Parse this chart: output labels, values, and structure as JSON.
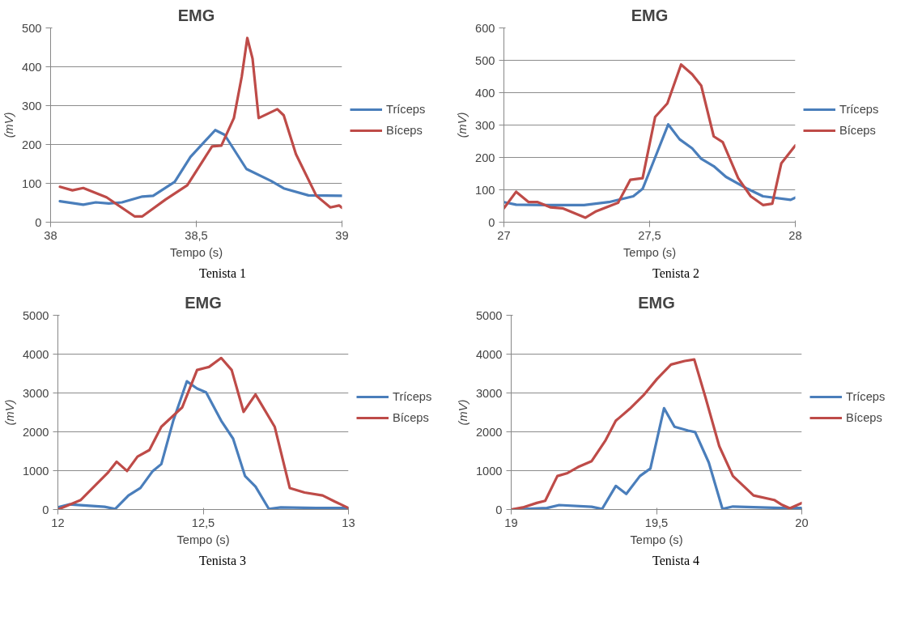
{
  "chart_data": [
    {
      "type": "line",
      "title": "EMG",
      "xlabel": "Tempo (s)",
      "ylabel": "(mV)",
      "annotations": [
        "Tenista 1"
      ],
      "xlim": [
        38,
        39
      ],
      "xticks": [
        38,
        {
          "value": 38.5,
          "label": "38,5"
        },
        39
      ],
      "ylim": [
        0,
        500
      ],
      "yticks": [
        0,
        100,
        200,
        300,
        400,
        500
      ],
      "grid": "y",
      "legend": "right",
      "series": [
        {
          "name": "Tríceps",
          "color": "#4a7ebb",
          "x": [
            38.032,
            38.112,
            38.155,
            38.2,
            38.245,
            38.315,
            38.352,
            38.426,
            38.48,
            38.565,
            38.597,
            38.672,
            38.757,
            38.8,
            38.885,
            39.0
          ],
          "values": [
            54,
            45,
            51,
            48,
            51,
            66,
            68,
            104,
            168,
            237,
            225,
            137,
            106,
            87,
            69,
            68
          ]
        },
        {
          "name": "Bíceps",
          "color": "#be4b48",
          "x": [
            38.032,
            38.075,
            38.112,
            38.192,
            38.288,
            38.315,
            38.394,
            38.469,
            38.554,
            38.586,
            38.629,
            38.656,
            38.675,
            38.693,
            38.714,
            38.778,
            38.8,
            38.842,
            38.912,
            38.96,
            38.99,
            39.0
          ],
          "values": [
            91,
            82,
            88,
            64,
            15,
            15,
            58,
            95,
            195,
            197,
            268,
            375,
            474,
            421,
            268,
            291,
            275,
            175,
            68,
            38,
            43,
            37
          ]
        }
      ]
    },
    {
      "type": "line",
      "title": "EMG",
      "xlabel": "Tempo (s)",
      "ylabel": "(mV)",
      "annotations": [
        "Tenista 2"
      ],
      "xlim": [
        27,
        28
      ],
      "xticks": [
        27,
        {
          "value": 27.5,
          "label": "27,5"
        },
        28
      ],
      "ylim": [
        0,
        600
      ],
      "yticks": [
        0,
        100,
        200,
        300,
        400,
        500,
        600
      ],
      "grid": "y",
      "legend": "right",
      "series": [
        {
          "name": "Tríceps",
          "color": "#4a7ebb",
          "x": [
            27.0,
            27.042,
            27.148,
            27.275,
            27.36,
            27.444,
            27.476,
            27.519,
            27.564,
            27.603,
            27.646,
            27.677,
            27.72,
            27.762,
            27.836,
            27.889,
            27.984,
            28.0
          ],
          "values": [
            62,
            54,
            53,
            53,
            62,
            80,
            103,
            200,
            302,
            256,
            228,
            196,
            173,
            140,
            103,
            80,
            69,
            76
          ]
        },
        {
          "name": "Bíceps",
          "color": "#be4b48",
          "x": [
            27.0,
            27.042,
            27.085,
            27.116,
            27.159,
            27.201,
            27.28,
            27.317,
            27.392,
            27.434,
            27.476,
            27.519,
            27.561,
            27.608,
            27.646,
            27.677,
            27.72,
            27.751,
            27.804,
            27.847,
            27.889,
            27.921,
            27.952,
            28.0
          ],
          "values": [
            43,
            94,
            62,
            62,
            46,
            43,
            14,
            34,
            60,
            131,
            136,
            325,
            367,
            487,
            457,
            422,
            265,
            247,
            136,
            80,
            53,
            57,
            182,
            237
          ]
        }
      ]
    },
    {
      "type": "line",
      "title": "EMG",
      "xlabel": "Tempo (s)",
      "ylabel": "(mV)",
      "annotations": [
        "Tenista 3"
      ],
      "xlim": [
        12,
        13
      ],
      "xticks": [
        12,
        {
          "value": 12.5,
          "label": "12,5"
        },
        13
      ],
      "ylim": [
        0,
        5000
      ],
      "yticks": [
        0,
        1000,
        2000,
        3000,
        4000,
        5000
      ],
      "grid": "y",
      "legend": "right",
      "series": [
        {
          "name": "Tríceps",
          "color": "#4a7ebb",
          "x": [
            12.0,
            12.038,
            12.089,
            12.161,
            12.197,
            12.243,
            12.284,
            12.325,
            12.356,
            12.397,
            12.444,
            12.479,
            12.51,
            12.562,
            12.603,
            12.644,
            12.68,
            12.726,
            12.767,
            12.89,
            13.0
          ],
          "values": [
            54,
            131,
            108,
            69,
            15,
            362,
            554,
            977,
            1169,
            2285,
            3300,
            3115,
            3015,
            2285,
            1823,
            862,
            592,
            15,
            54,
            38,
            38
          ]
        },
        {
          "name": "Bíceps",
          "color": "#be4b48",
          "x": [
            12.0,
            12.079,
            12.13,
            12.171,
            12.202,
            12.238,
            12.274,
            12.315,
            12.356,
            12.428,
            12.479,
            12.52,
            12.562,
            12.598,
            12.639,
            12.68,
            12.746,
            12.798,
            12.849,
            12.911,
            12.952,
            13.0
          ],
          "values": [
            0,
            246,
            631,
            938,
            1231,
            992,
            1362,
            1531,
            2131,
            2631,
            3592,
            3669,
            3900,
            3592,
            2515,
            2962,
            2131,
            554,
            438,
            362,
            208,
            38
          ]
        }
      ]
    },
    {
      "type": "line",
      "title": "EMG",
      "xlabel": "Tempo (s)",
      "ylabel": "(mV)",
      "annotations": [
        "Tenista 4"
      ],
      "xlim": [
        19,
        20
      ],
      "xticks": [
        19,
        {
          "value": 19.5,
          "label": "19,5"
        },
        20
      ],
      "ylim": [
        0,
        5000
      ],
      "yticks": [
        0,
        1000,
        2000,
        3000,
        4000,
        5000
      ],
      "grid": "y",
      "legend": "right",
      "series": [
        {
          "name": "Tríceps",
          "color": "#4a7ebb",
          "x": [
            19.0,
            19.123,
            19.165,
            19.277,
            19.313,
            19.36,
            19.396,
            19.443,
            19.479,
            19.526,
            19.562,
            19.609,
            19.633,
            19.68,
            19.727,
            19.763,
            19.929,
            20.0
          ],
          "values": [
            0,
            38,
            115,
            69,
            15,
            608,
            400,
            862,
            1054,
            2608,
            2131,
            2031,
            1992,
            1208,
            15,
            77,
            38,
            38
          ]
        },
        {
          "name": "Bíceps",
          "color": "#be4b48",
          "x": [
            19.0,
            19.04,
            19.088,
            19.117,
            19.159,
            19.194,
            19.23,
            19.277,
            19.325,
            19.36,
            19.408,
            19.455,
            19.502,
            19.55,
            19.597,
            19.63,
            19.668,
            19.716,
            19.763,
            19.834,
            19.905,
            19.929,
            19.959,
            20.0
          ],
          "values": [
            0,
            54,
            169,
            223,
            862,
            938,
            1092,
            1246,
            1785,
            2285,
            2592,
            2938,
            3362,
            3731,
            3823,
            3862,
            2900,
            1631,
            862,
            362,
            246,
            131,
            31,
            169
          ]
        }
      ]
    }
  ]
}
